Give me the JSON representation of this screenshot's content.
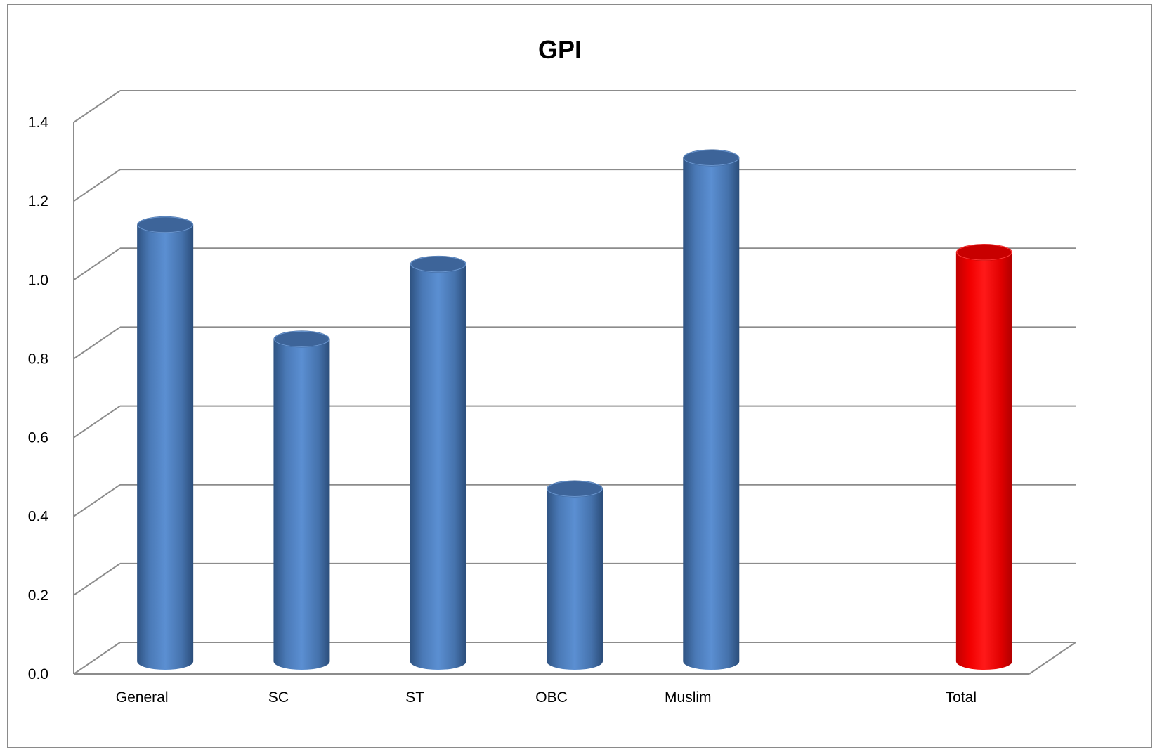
{
  "chart_data": {
    "type": "bar",
    "style": "3d-cylinder",
    "title": "GPI",
    "xlabel": "",
    "ylabel": "",
    "categories": [
      "General",
      "SC",
      "ST",
      "OBC",
      "Muslim",
      "",
      "Total"
    ],
    "values": [
      1.14,
      0.85,
      1.04,
      0.47,
      1.31,
      null,
      1.07
    ],
    "yticks": [
      "0.0",
      "0.2",
      "0.4",
      "0.6",
      "0.8",
      "1.0",
      "1.2",
      "1.4"
    ],
    "ylim": [
      0,
      1.4
    ],
    "grid": true,
    "legend": "none",
    "colors": {
      "default_bar": "#4f81bd",
      "highlight_bar": "#ff0000",
      "highlight_category": "Total",
      "gridline": "#8c8c8c"
    }
  }
}
